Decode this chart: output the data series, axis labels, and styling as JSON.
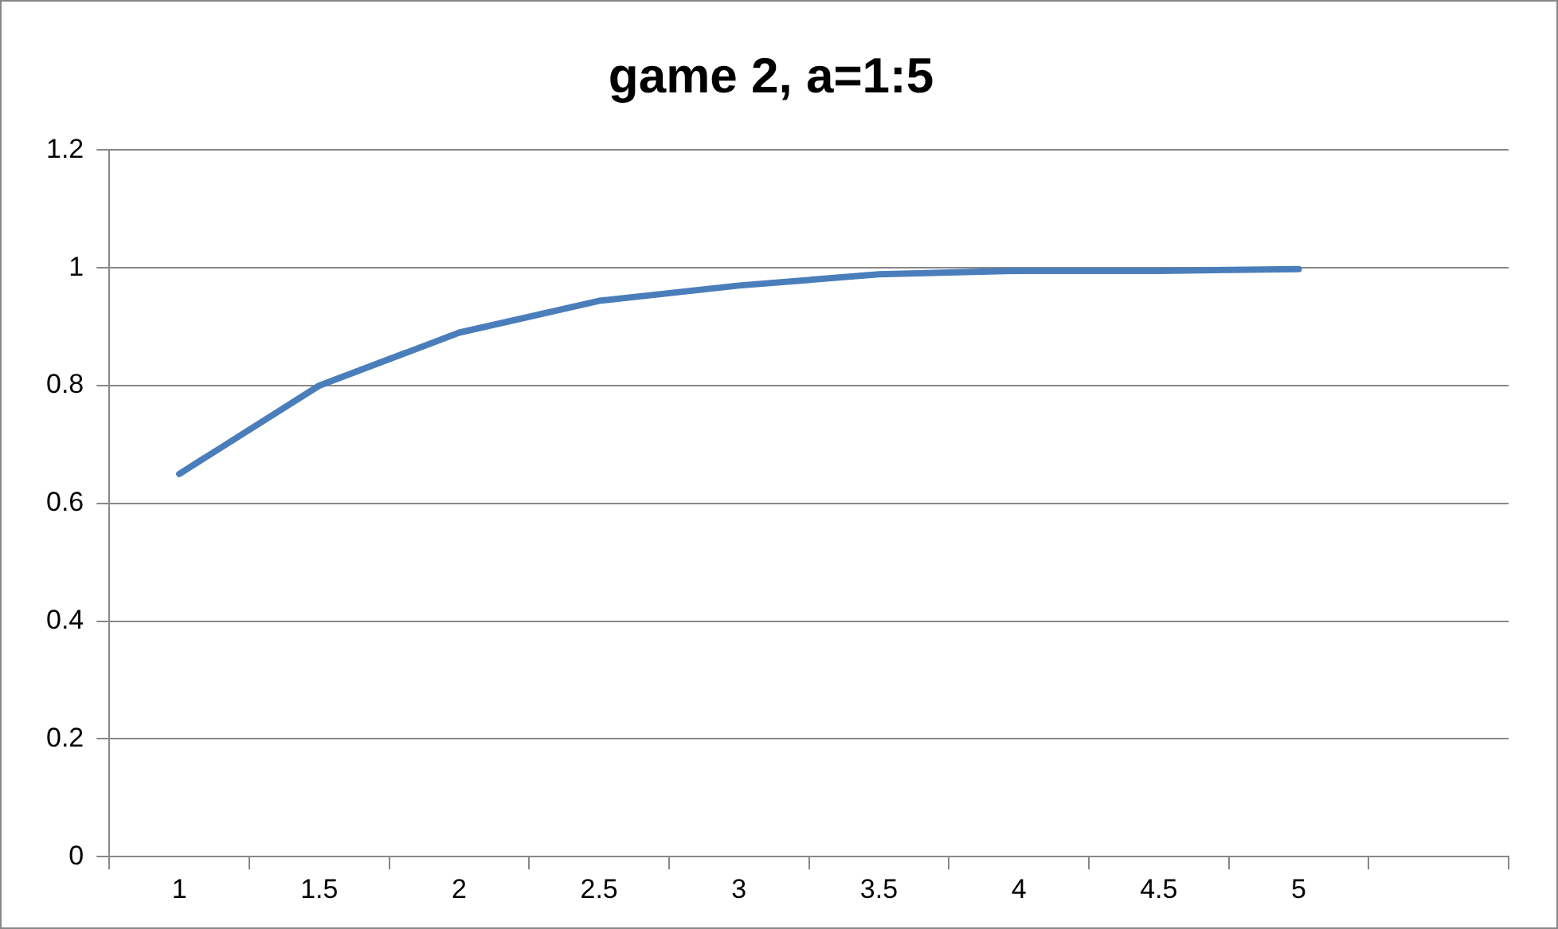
{
  "chart_data": {
    "type": "line",
    "title": "game 2, a=1:5",
    "categories": [
      "1",
      "1.5",
      "2",
      "2.5",
      "3",
      "3.5",
      "4",
      "4.5",
      "5",
      null
    ],
    "series": [
      {
        "color": "#4a7ebb",
        "values": [
          0.65,
          0.8,
          0.89,
          0.944,
          0.97,
          0.989,
          0.995,
          0.995,
          0.998,
          null
        ]
      }
    ],
    "ylim": [
      0,
      1.2
    ],
    "yticks": [
      0,
      0.2,
      0.4,
      0.6,
      0.8,
      1,
      1.2
    ],
    "grid": "y",
    "legend": false,
    "marker": "none",
    "line_style": "solid"
  }
}
